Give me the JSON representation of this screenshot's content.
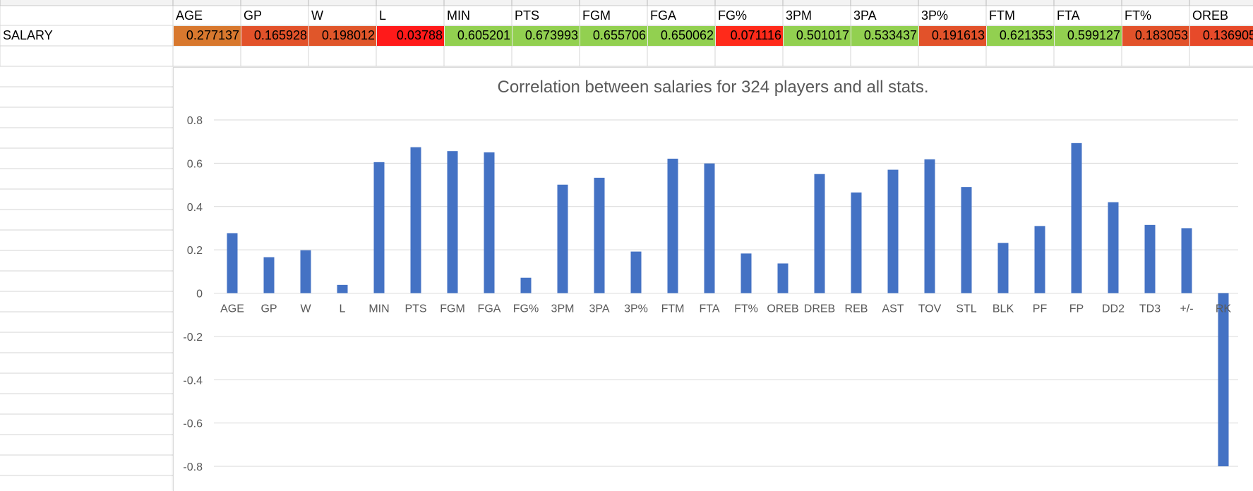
{
  "sheet": {
    "row_label": "SALARY",
    "headers": [
      "AGE",
      "GP",
      "W",
      "L",
      "MIN",
      "PTS",
      "FGM",
      "FGA",
      "FG%",
      "3PM",
      "3PA",
      "3P%",
      "FTM",
      "FTA",
      "FT%",
      "OREB"
    ],
    "values": [
      "0.277137",
      "0.165928",
      "0.198012",
      "0.03788",
      "0.605201",
      "0.673993",
      "0.655706",
      "0.650062",
      "0.071116",
      "0.501017",
      "0.533437",
      "0.191613",
      "0.621353",
      "0.599127",
      "0.183053",
      "0.136905"
    ],
    "cell_colors": [
      "#d8782e",
      "#e2522a",
      "#e0562a",
      "#ff1a1a",
      "#92d050",
      "#92d050",
      "#92d050",
      "#92d050",
      "#ff2a1a",
      "#92d050",
      "#92d050",
      "#e2522a",
      "#92d050",
      "#92d050",
      "#e2522a",
      "#e74a2a"
    ]
  },
  "chart_data": {
    "type": "bar",
    "title": "Correlation between salaries for 324 players and all stats.",
    "categories": [
      "AGE",
      "GP",
      "W",
      "L",
      "MIN",
      "PTS",
      "FGM",
      "FGA",
      "FG%",
      "3PM",
      "3PA",
      "3P%",
      "FTM",
      "FTA",
      "FT%",
      "OREB",
      "DREB",
      "REB",
      "AST",
      "TOV",
      "STL",
      "BLK",
      "PF",
      "FP",
      "DD2",
      "TD3",
      "+/-",
      "RK"
    ],
    "series": [
      {
        "values": [
          0.277,
          0.166,
          0.198,
          0.038,
          0.605,
          0.674,
          0.656,
          0.65,
          0.071,
          0.501,
          0.533,
          0.192,
          0.621,
          0.599,
          0.183,
          0.137,
          0.55,
          0.465,
          0.57,
          0.618,
          0.49,
          0.232,
          0.31,
          0.693,
          0.42,
          0.315,
          0.3,
          -0.8
        ]
      }
    ],
    "y_ticks": [
      "0.8",
      "0.6",
      "0.4",
      "0.2",
      "0",
      "-0.2",
      "-0.4",
      "-0.6",
      "-0.8"
    ],
    "ylim": [
      -0.8,
      0.8
    ],
    "grid": true,
    "legend": "none",
    "bar_color": "#4472c4"
  }
}
